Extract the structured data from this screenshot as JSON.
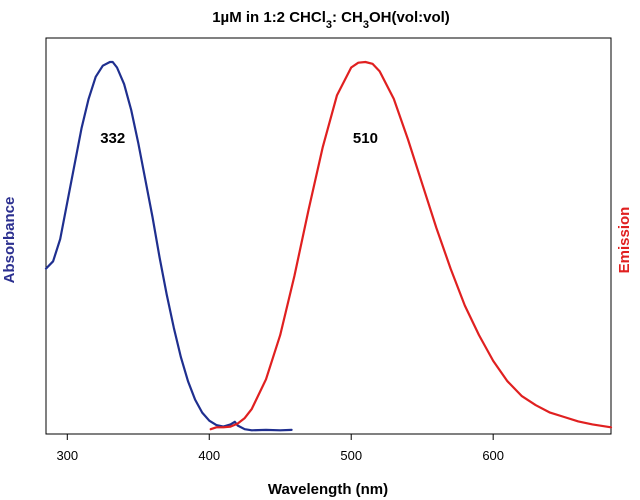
{
  "chart_data": {
    "type": "line",
    "title": {
      "pre": "1µM in 1:2 CHCl",
      "sub1": "3",
      "mid": ": CH",
      "sub2": "3",
      "post": "OH(vol:vol)"
    },
    "xlabel": "Wavelength (nm)",
    "ylabel_left": "Absorbance",
    "ylabel_right": "Emission",
    "xlim": [
      285,
      683
    ],
    "ylim": [
      0,
      1
    ],
    "xticks": [
      300,
      400,
      500,
      600
    ],
    "grid": false,
    "legend": "none",
    "series": [
      {
        "color": "#1f2f8f",
        "axis": "left",
        "x": [
          285,
          290,
          295,
          300,
          305,
          310,
          315,
          320,
          325,
          330,
          332,
          335,
          340,
          345,
          350,
          355,
          360,
          365,
          370,
          375,
          380,
          385,
          390,
          395,
          400,
          405,
          410,
          415,
          418,
          420,
          425,
          430,
          440,
          450,
          458
        ],
        "y": [
          0.44,
          0.46,
          0.52,
          0.62,
          0.72,
          0.82,
          0.9,
          0.96,
          0.99,
          1.0,
          1.0,
          0.985,
          0.94,
          0.87,
          0.78,
          0.68,
          0.58,
          0.47,
          0.37,
          0.28,
          0.2,
          0.135,
          0.085,
          0.05,
          0.028,
          0.016,
          0.012,
          0.018,
          0.025,
          0.015,
          0.005,
          0.002,
          0.003,
          0.002,
          0.003
        ]
      },
      {
        "color": "#e02020",
        "axis": "right",
        "x": [
          401,
          405,
          410,
          415,
          420,
          425,
          430,
          440,
          450,
          460,
          470,
          480,
          490,
          500,
          505,
          510,
          515,
          520,
          530,
          540,
          550,
          560,
          570,
          580,
          590,
          600,
          610,
          620,
          630,
          640,
          650,
          660,
          670,
          683
        ],
        "y": [
          0.005,
          0.01,
          0.01,
          0.012,
          0.02,
          0.035,
          0.06,
          0.14,
          0.26,
          0.42,
          0.6,
          0.77,
          0.91,
          0.985,
          0.998,
          1.0,
          0.995,
          0.975,
          0.9,
          0.79,
          0.67,
          0.55,
          0.44,
          0.34,
          0.26,
          0.19,
          0.135,
          0.095,
          0.07,
          0.05,
          0.038,
          0.026,
          0.018,
          0.01
        ]
      }
    ],
    "annotations": [
      {
        "text": "332",
        "x": 332,
        "y": 0.78
      },
      {
        "text": "510",
        "x": 510,
        "y": 0.78
      }
    ]
  }
}
